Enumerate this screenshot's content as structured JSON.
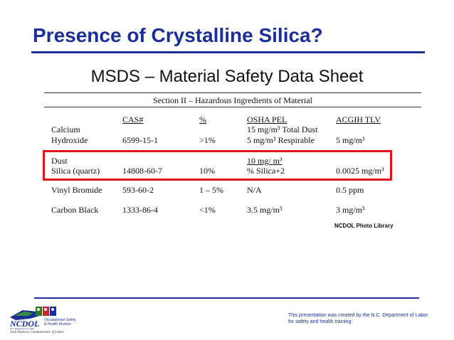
{
  "slide": {
    "title": "Presence of Crystalline Silica?",
    "subtitle": "MSDS – Material Safety Data Sheet"
  },
  "document": {
    "section_title": "Section II – Hazardous Ingredients of Material",
    "headers": {
      "cas": "CAS#",
      "pct": "%",
      "pel": "OSHA PEL",
      "tlv": "ACGIH TLV"
    },
    "rows": [
      {
        "name1": "Calcium",
        "name2": "Hydroxide",
        "cas": "6599-15-1",
        "pct": ">1%",
        "pel1": "15 mg/m³ Total Dust",
        "pel2": "5 mg/m³ Respirable",
        "tlv": "5 mg/m³"
      },
      {
        "name1": "Dust",
        "name2": "Silica (quartz)",
        "cas": "14808-60-7",
        "pct": "10%",
        "pel1": "10 mg/ m³",
        "pel2": "% Silica+2",
        "tlv": "0.0025 mg/m³"
      },
      {
        "name": "Vinyl Bromide",
        "cas": "593-60-2",
        "pct": "1 – 5%",
        "pel": "N/A",
        "tlv": "0.5 ppm"
      },
      {
        "name": "Carbon Black",
        "cas": "1333-86-4",
        "pct": "<1%",
        "pel": "3.5 mg/m³",
        "tlv": "3 mg/m³"
      }
    ],
    "credit": "NCDOL Photo Library"
  },
  "footer": {
    "logo": {
      "name": "NCDOL",
      "division_line1": "Occupational Safety",
      "division_line2": "& Health Division",
      "dept": "N.C. Department of Labor",
      "commissioner": "Josh Dobson, Commissioner of Labor"
    },
    "note": "This presentation was created by the N.C. Department of Labor for safety and health training."
  },
  "colors": {
    "title_blue": "#1a2f9c",
    "highlight_red": "#e3141b"
  }
}
